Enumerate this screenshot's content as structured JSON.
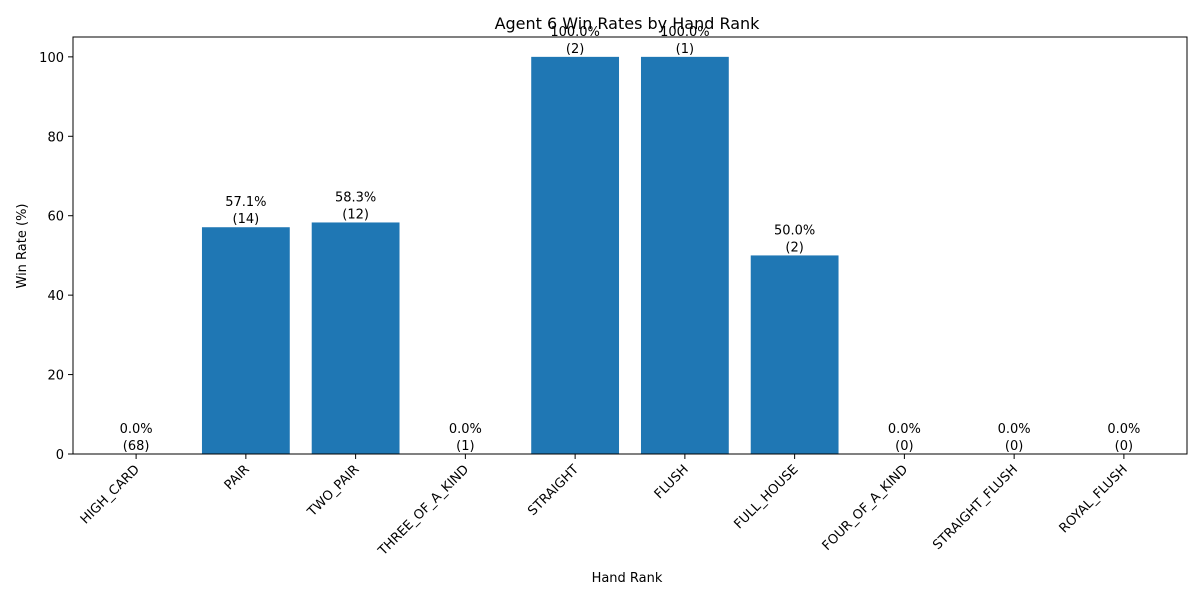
{
  "chart_data": {
    "type": "bar",
    "title": "Agent 6 Win Rates by Hand Rank",
    "xlabel": "Hand Rank",
    "ylabel": "Win Rate (%)",
    "ylim": [
      0,
      105
    ],
    "yticks": [
      0,
      20,
      40,
      60,
      80,
      100
    ],
    "categories": [
      "HIGH_CARD",
      "PAIR",
      "TWO_PAIR",
      "THREE_OF_A_KIND",
      "STRAIGHT",
      "FLUSH",
      "FULL_HOUSE",
      "FOUR_OF_A_KIND",
      "STRAIGHT_FLUSH",
      "ROYAL_FLUSH"
    ],
    "values": [
      0.0,
      57.1,
      58.3,
      0.0,
      100.0,
      100.0,
      50.0,
      0.0,
      0.0,
      0.0
    ],
    "counts": [
      68,
      14,
      12,
      1,
      2,
      1,
      2,
      0,
      0,
      0
    ],
    "value_labels": [
      "0.0%",
      "57.1%",
      "58.3%",
      "0.0%",
      "100.0%",
      "100.0%",
      "50.0%",
      "0.0%",
      "0.0%",
      "0.0%"
    ],
    "count_labels": [
      "(68)",
      "(14)",
      "(12)",
      "(1)",
      "(2)",
      "(1)",
      "(2)",
      "(0)",
      "(0)",
      "(0)"
    ],
    "bar_color": "#1f77b4",
    "grid": false,
    "legend": "none"
  }
}
